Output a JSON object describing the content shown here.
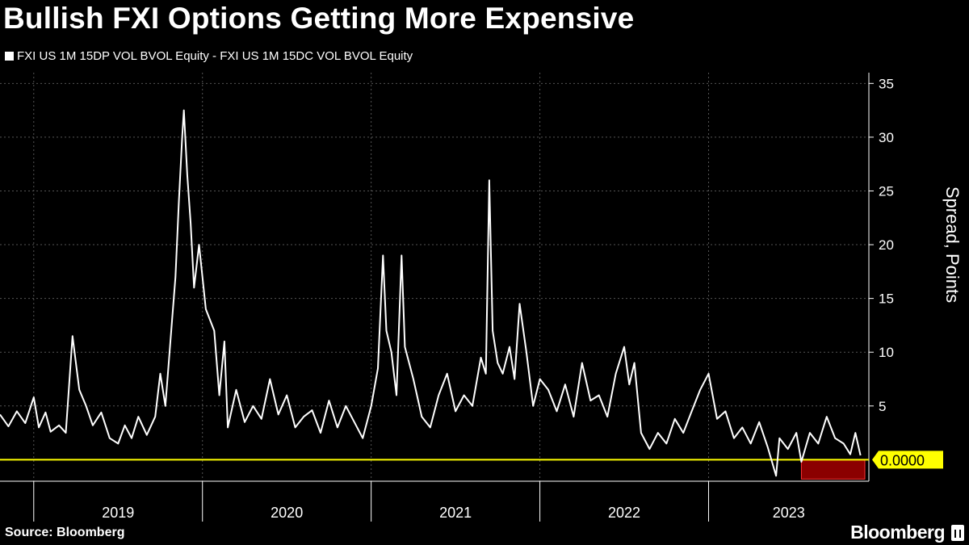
{
  "title": "Bullish FXI Options Getting More Expensive",
  "source": "Source: Bloomberg",
  "brand": "Bloomberg",
  "colors": {
    "background": "#000000",
    "line": "#ffffff",
    "zero_line": "#ffff00",
    "highlight_fill": "#8b0000",
    "highlight_stroke": "#ff3333",
    "grid": "#555555"
  },
  "chart_data": {
    "type": "line",
    "title": "Bullish FXI Options Getting More Expensive",
    "xlabel": "",
    "ylabel": "Spread, Points",
    "ylim": [
      -2,
      36
    ],
    "xlim": [
      2018.8,
      2023.95
    ],
    "x_ticks": [
      {
        "label": "2019",
        "value": 2019.0
      },
      {
        "label": "2020",
        "value": 2020.0
      },
      {
        "label": "2021",
        "value": 2021.0
      },
      {
        "label": "2022",
        "value": 2022.0
      },
      {
        "label": "2023",
        "value": 2023.0
      }
    ],
    "y_ticks": [
      5,
      10,
      15,
      20,
      25,
      30,
      35
    ],
    "grid": true,
    "legend_position": "top-left",
    "series": [
      {
        "name": "FXI US 1M 15DP VOL BVOL Equity - FXI US 1M 15DC VOL BVOL Equity",
        "points": [
          [
            2018.8,
            4.2
          ],
          [
            2018.85,
            3.1
          ],
          [
            2018.9,
            4.5
          ],
          [
            2018.95,
            3.4
          ],
          [
            2019.0,
            5.8
          ],
          [
            2019.03,
            3.0
          ],
          [
            2019.07,
            4.4
          ],
          [
            2019.1,
            2.6
          ],
          [
            2019.15,
            3.2
          ],
          [
            2019.19,
            2.5
          ],
          [
            2019.23,
            11.5
          ],
          [
            2019.27,
            6.5
          ],
          [
            2019.31,
            5.0
          ],
          [
            2019.35,
            3.2
          ],
          [
            2019.4,
            4.4
          ],
          [
            2019.45,
            2.0
          ],
          [
            2019.5,
            1.5
          ],
          [
            2019.54,
            3.2
          ],
          [
            2019.58,
            2.0
          ],
          [
            2019.62,
            4.0
          ],
          [
            2019.67,
            2.3
          ],
          [
            2019.72,
            4.0
          ],
          [
            2019.75,
            8.0
          ],
          [
            2019.78,
            5.0
          ],
          [
            2019.82,
            13.0
          ],
          [
            2019.84,
            17.0
          ],
          [
            2019.86,
            24.0
          ],
          [
            2019.88,
            30.0
          ],
          [
            2019.89,
            32.5
          ],
          [
            2019.91,
            26.5
          ],
          [
            2019.93,
            22.0
          ],
          [
            2019.95,
            16.0
          ],
          [
            2019.98,
            20.0
          ],
          [
            2020.02,
            14.0
          ],
          [
            2020.07,
            12.0
          ],
          [
            2020.1,
            6.0
          ],
          [
            2020.13,
            11.0
          ],
          [
            2020.15,
            3.0
          ],
          [
            2020.2,
            6.5
          ],
          [
            2020.25,
            3.5
          ],
          [
            2020.3,
            5.0
          ],
          [
            2020.35,
            3.8
          ],
          [
            2020.4,
            7.5
          ],
          [
            2020.45,
            4.2
          ],
          [
            2020.5,
            6.0
          ],
          [
            2020.55,
            3.0
          ],
          [
            2020.6,
            4.0
          ],
          [
            2020.65,
            4.6
          ],
          [
            2020.7,
            2.5
          ],
          [
            2020.75,
            5.5
          ],
          [
            2020.8,
            3.0
          ],
          [
            2020.85,
            5.0
          ],
          [
            2020.9,
            3.5
          ],
          [
            2020.95,
            2.0
          ],
          [
            2021.0,
            5.0
          ],
          [
            2021.04,
            8.5
          ],
          [
            2021.07,
            19.0
          ],
          [
            2021.09,
            12.0
          ],
          [
            2021.12,
            10.0
          ],
          [
            2021.15,
            6.0
          ],
          [
            2021.18,
            19.0
          ],
          [
            2021.2,
            10.5
          ],
          [
            2021.25,
            7.5
          ],
          [
            2021.3,
            4.0
          ],
          [
            2021.35,
            3.0
          ],
          [
            2021.4,
            6.0
          ],
          [
            2021.45,
            8.0
          ],
          [
            2021.5,
            4.5
          ],
          [
            2021.55,
            6.0
          ],
          [
            2021.6,
            5.0
          ],
          [
            2021.65,
            9.5
          ],
          [
            2021.68,
            8.0
          ],
          [
            2021.7,
            26.0
          ],
          [
            2021.72,
            12.0
          ],
          [
            2021.75,
            9.0
          ],
          [
            2021.78,
            8.0
          ],
          [
            2021.82,
            10.5
          ],
          [
            2021.85,
            7.5
          ],
          [
            2021.88,
            14.5
          ],
          [
            2021.92,
            10.0
          ],
          [
            2021.96,
            5.0
          ],
          [
            2022.0,
            7.5
          ],
          [
            2022.05,
            6.5
          ],
          [
            2022.1,
            4.5
          ],
          [
            2022.15,
            7.0
          ],
          [
            2022.2,
            4.0
          ],
          [
            2022.25,
            9.0
          ],
          [
            2022.3,
            5.5
          ],
          [
            2022.35,
            6.0
          ],
          [
            2022.4,
            4.0
          ],
          [
            2022.45,
            8.0
          ],
          [
            2022.5,
            10.5
          ],
          [
            2022.53,
            7.0
          ],
          [
            2022.56,
            9.0
          ],
          [
            2022.6,
            2.5
          ],
          [
            2022.65,
            1.0
          ],
          [
            2022.7,
            2.5
          ],
          [
            2022.75,
            1.5
          ],
          [
            2022.8,
            3.8
          ],
          [
            2022.85,
            2.5
          ],
          [
            2022.9,
            4.5
          ],
          [
            2022.95,
            6.5
          ],
          [
            2023.0,
            8.0
          ],
          [
            2023.05,
            3.8
          ],
          [
            2023.1,
            4.5
          ],
          [
            2023.15,
            2.0
          ],
          [
            2023.2,
            3.0
          ],
          [
            2023.25,
            1.5
          ],
          [
            2023.3,
            3.5
          ],
          [
            2023.35,
            1.2
          ],
          [
            2023.4,
            -1.5
          ],
          [
            2023.42,
            2.0
          ],
          [
            2023.47,
            1.0
          ],
          [
            2023.52,
            2.5
          ],
          [
            2023.55,
            -0.2
          ],
          [
            2023.6,
            2.5
          ],
          [
            2023.65,
            1.5
          ],
          [
            2023.7,
            4.0
          ],
          [
            2023.75,
            2.0
          ],
          [
            2023.8,
            1.5
          ],
          [
            2023.84,
            0.5
          ],
          [
            2023.87,
            2.5
          ],
          [
            2023.9,
            0.4
          ]
        ]
      }
    ],
    "annotations": [
      {
        "type": "horizontal_line",
        "y": 0,
        "label": "0.0000"
      },
      {
        "type": "highlight_box",
        "x0": 2023.55,
        "x1": 2023.98,
        "y0": -2,
        "y1": 0
      }
    ]
  }
}
